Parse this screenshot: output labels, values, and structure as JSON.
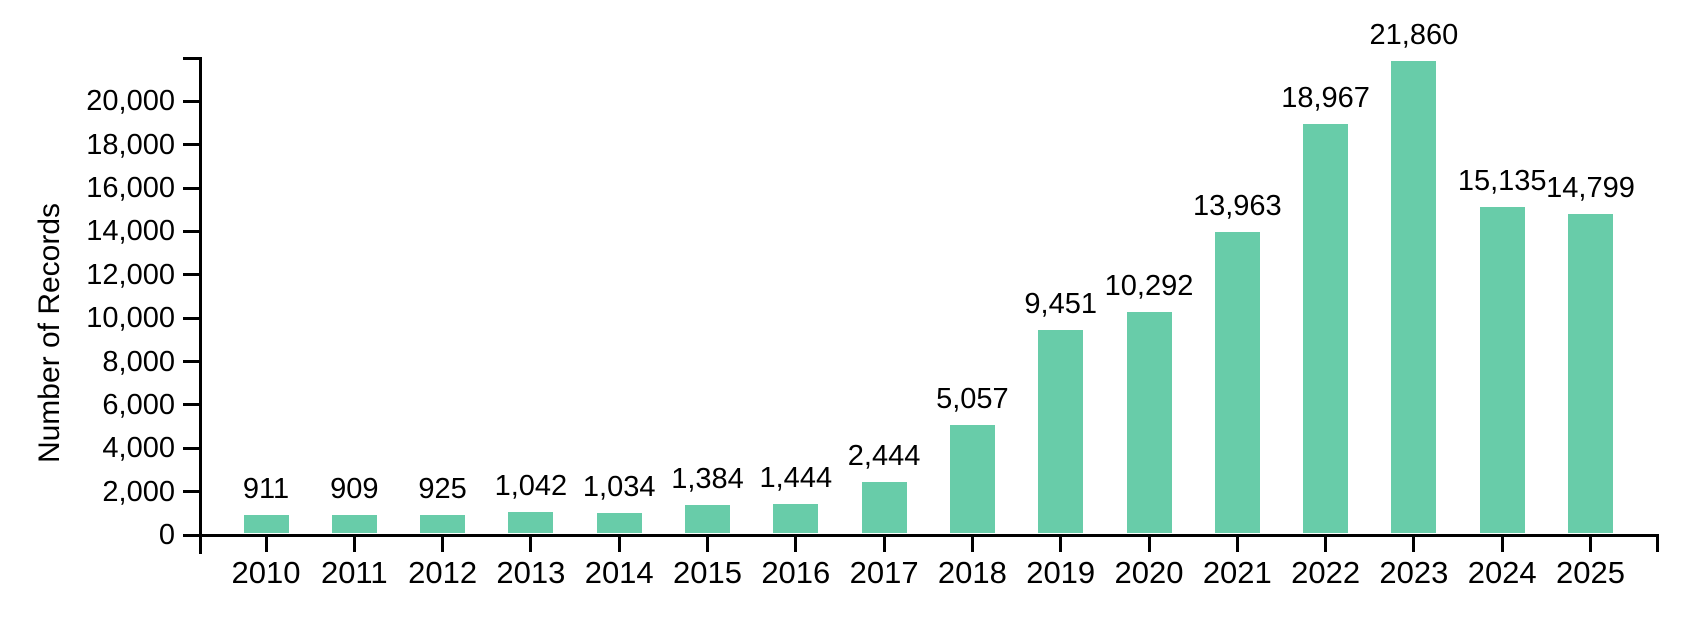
{
  "chart_data": {
    "type": "bar",
    "title": "",
    "xlabel": "",
    "ylabel": "Number of Records",
    "categories": [
      "2010",
      "2011",
      "2012",
      "2013",
      "2014",
      "2015",
      "2016",
      "2017",
      "2018",
      "2019",
      "2020",
      "2021",
      "2022",
      "2023",
      "2024",
      "2025"
    ],
    "values": [
      911,
      909,
      925,
      1042,
      1034,
      1384,
      1444,
      2444,
      5057,
      9451,
      10292,
      13963,
      18967,
      21860,
      15135,
      14799
    ],
    "value_labels": [
      "911",
      "909",
      "925",
      "1,042",
      "1,034",
      "1,384",
      "1,444",
      "2,444",
      "5,057",
      "9,451",
      "10,292",
      "13,963",
      "18,967",
      "21,860",
      "15,135",
      "14,799"
    ],
    "y_ticks": [
      {
        "value": 0,
        "label": "0"
      },
      {
        "value": 2000,
        "label": "2,000"
      },
      {
        "value": 4000,
        "label": "4,000"
      },
      {
        "value": 6000,
        "label": "6,000"
      },
      {
        "value": 8000,
        "label": "8,000"
      },
      {
        "value": 10000,
        "label": "10,000"
      },
      {
        "value": 12000,
        "label": "12,000"
      },
      {
        "value": 14000,
        "label": "14,000"
      },
      {
        "value": 16000,
        "label": "16,000"
      },
      {
        "value": 18000,
        "label": "18,000"
      },
      {
        "value": 20000,
        "label": "20,000"
      }
    ],
    "ylim": [
      0,
      22000
    ],
    "grid": false,
    "legend": null,
    "colors": {
      "bar_fill": "#68CCA9",
      "axis": "#000000",
      "text": "#000000",
      "background": "#ffffff"
    }
  }
}
